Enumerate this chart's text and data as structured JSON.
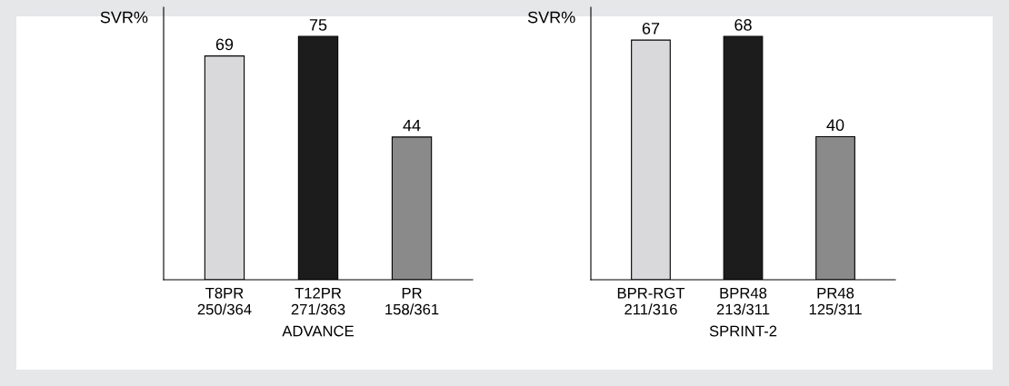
{
  "chart_data": [
    {
      "type": "bar",
      "xlabel": "ADVANCE",
      "ylabel": "SVR%",
      "categories": [
        "T8PR\n250/364",
        "T12PR\n271/363",
        "PR\n158/361"
      ],
      "values": [
        69,
        75,
        44
      ],
      "colors": [
        "#d9d9db",
        "#1c1c1c",
        "#8a8a8a"
      ],
      "data_labels": true,
      "tick_labels": "x",
      "grid": false,
      "legend": false
    },
    {
      "type": "bar",
      "xlabel": "SPRINT-2",
      "ylabel": "SVR%",
      "categories": [
        "BPR-RGT\n211/316",
        "BPR48\n213/311",
        "PR48\n125/311"
      ],
      "values": [
        67,
        68,
        40
      ],
      "colors": [
        "#d9d9db",
        "#1c1c1c",
        "#8a8a8a"
      ],
      "data_labels": true,
      "tick_labels": "x",
      "grid": false,
      "legend": false
    }
  ]
}
